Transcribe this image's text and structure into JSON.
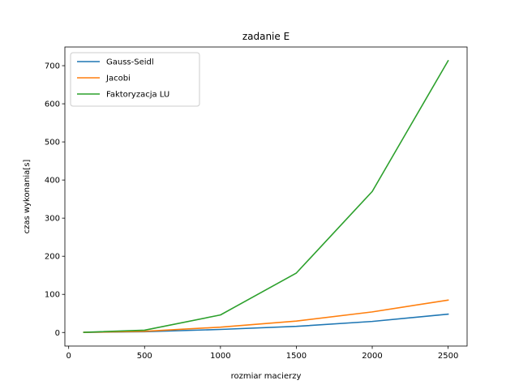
{
  "chart_data": {
    "type": "line",
    "title": "zadanie E",
    "xlabel": "rozmiar macierzy",
    "ylabel": "czas wykonania[s]",
    "xlim": [
      -25,
      2625
    ],
    "ylim": [
      -35.6,
      749
    ],
    "xticks": [
      0,
      500,
      1000,
      1500,
      2000,
      2500
    ],
    "yticks": [
      0,
      100,
      200,
      300,
      400,
      500,
      600,
      700
    ],
    "x": [
      100,
      500,
      1000,
      1500,
      2000,
      2500
    ],
    "series": [
      {
        "name": "Gauss-Seidl",
        "color": "#1f77b4",
        "values": [
          0.3,
          2,
          8,
          16,
          29,
          48
        ]
      },
      {
        "name": "Jacobi",
        "color": "#ff7f0e",
        "values": [
          0.4,
          3,
          14,
          30,
          54,
          85
        ]
      },
      {
        "name": "Faktoryzacja LU",
        "color": "#2ca02c",
        "values": [
          0.5,
          6,
          46,
          156,
          370,
          713
        ]
      }
    ],
    "legend": {
      "position": "top-left"
    },
    "grid": false
  }
}
